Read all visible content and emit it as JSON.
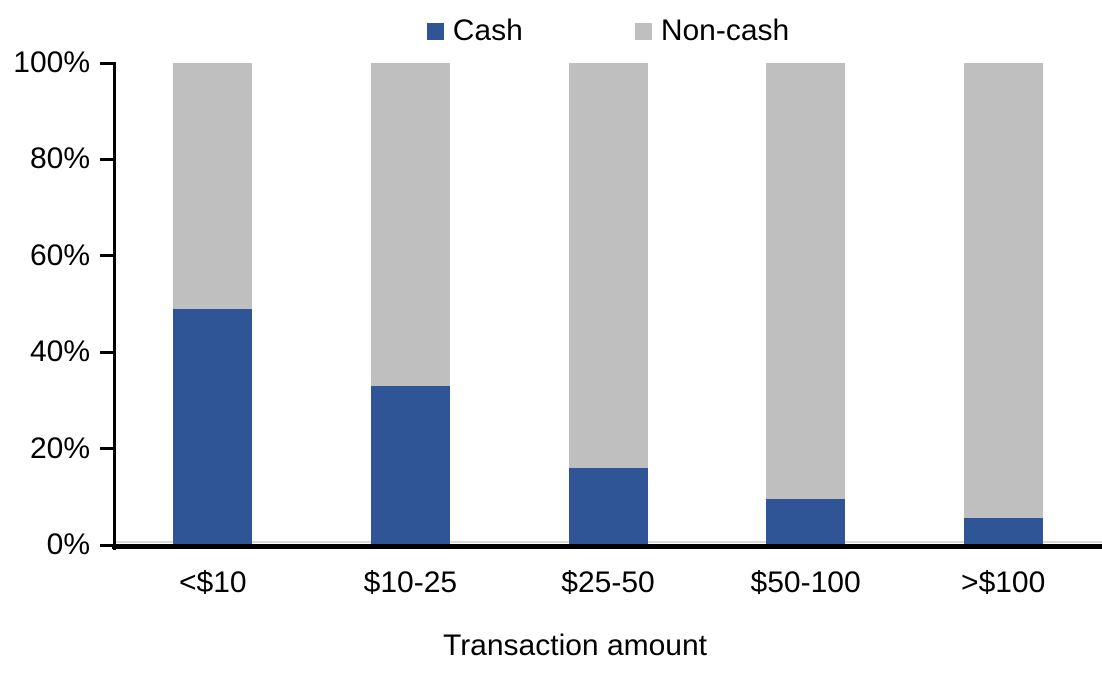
{
  "chart_data": {
    "type": "bar",
    "stacked": true,
    "percent_stacked": true,
    "title": "",
    "xlabel": "Transaction amount",
    "ylabel": "",
    "ylim": [
      0,
      100
    ],
    "grid": false,
    "legend_position": "top",
    "background": "#FFFFFF",
    "axis_color": "#000000",
    "categories": [
      "<$10",
      "$10-25",
      "$25-50",
      "$50-100",
      ">$100"
    ],
    "series": [
      {
        "name": "Cash",
        "color": "#2F5597",
        "values": [
          49,
          33,
          16,
          9.5,
          5.5
        ]
      },
      {
        "name": "Non-cash",
        "color": "#BFBFBF",
        "values": [
          51,
          67,
          84,
          90.5,
          94.5
        ]
      }
    ],
    "yticks": [
      "0%",
      "20%",
      "40%",
      "60%",
      "80%",
      "100%"
    ]
  }
}
